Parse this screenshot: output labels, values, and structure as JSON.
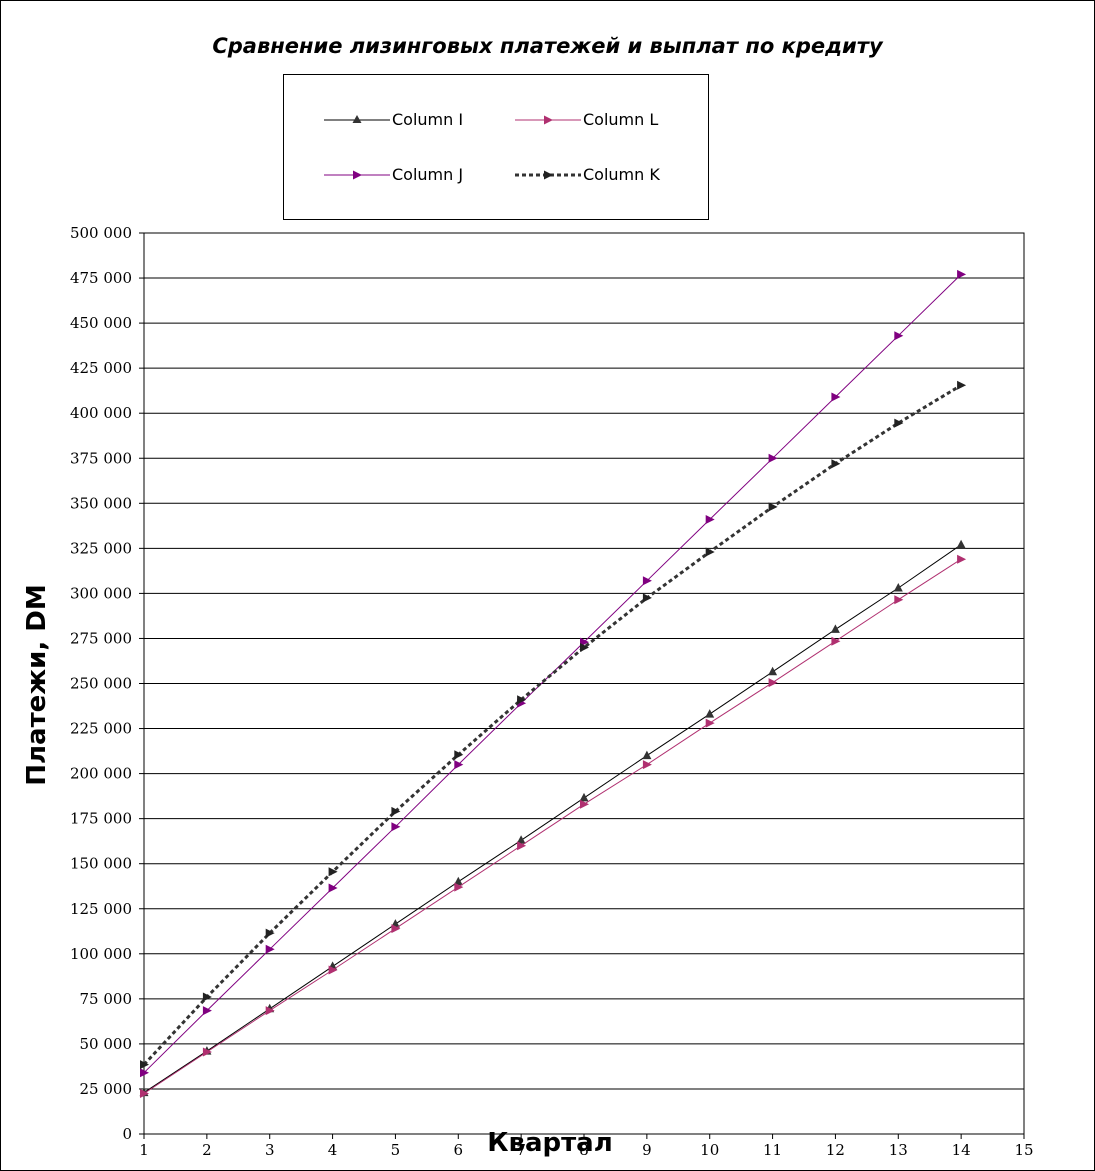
{
  "chart_data": {
    "type": "line",
    "title": "Сравнение лизинговых платежей и выплат по кредиту",
    "xlabel": "Квартал",
    "ylabel": "Платежи, DM",
    "xlim": [
      1,
      15
    ],
    "ylim": [
      0,
      500000
    ],
    "x_ticks": [
      "1",
      "2",
      "3",
      "4",
      "5",
      "6",
      "7",
      "8",
      "9",
      "10",
      "11",
      "12",
      "13",
      "14",
      "15"
    ],
    "y_ticks": [
      "0",
      "25 000",
      "50 000",
      "75 000",
      "100 000",
      "125 000",
      "150 000",
      "175 000",
      "200 000",
      "225 000",
      "250 000",
      "275 000",
      "300 000",
      "325 000",
      "350 000",
      "375 000",
      "400 000",
      "425 000",
      "450 000",
      "475 000",
      "500 000"
    ],
    "grid": "horizontal",
    "legend_position": "top",
    "x": [
      1,
      2,
      3,
      4,
      5,
      6,
      7,
      8,
      9,
      10,
      11,
      12,
      13,
      14
    ],
    "series": [
      {
        "name": "Column I",
        "color": "#000000",
        "marker_color": "#333333",
        "marker": "triangle-up",
        "line": "solid",
        "values": [
          23000,
          46000,
          69500,
          93000,
          116500,
          140000,
          163000,
          186500,
          210000,
          233000,
          256500,
          280000,
          303000,
          327000
        ]
      },
      {
        "name": "Column L",
        "color": "#b03070",
        "marker_color": "#b03070",
        "marker": "triangle-right",
        "line": "solid",
        "values": [
          22500,
          45500,
          68500,
          91000,
          114000,
          137000,
          160000,
          183000,
          205000,
          228000,
          250500,
          273500,
          296500,
          319000
        ]
      },
      {
        "name": "Column J",
        "color": "#800080",
        "marker_color": "#800080",
        "marker": "triangle-right",
        "line": "solid",
        "values": [
          34000,
          68500,
          102500,
          136500,
          170500,
          205000,
          239000,
          273000,
          307000,
          341000,
          375000,
          409000,
          443000,
          477000
        ]
      },
      {
        "name": "Column K",
        "color": "#333333",
        "marker_color": "#222222",
        "marker": "triangle-right",
        "line": "dotted",
        "values": [
          38500,
          76000,
          111500,
          145500,
          179000,
          210500,
          241000,
          270000,
          297500,
          323000,
          348000,
          372000,
          394500,
          415500
        ]
      }
    ]
  }
}
